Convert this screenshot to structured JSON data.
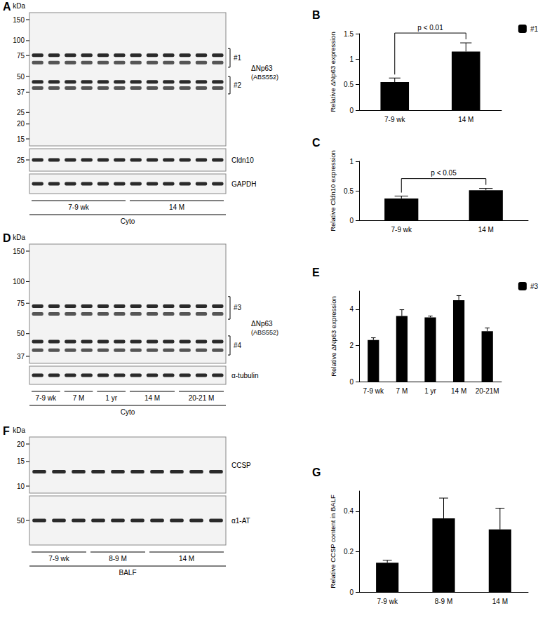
{
  "chart_data": [
    {
      "type": "bar",
      "title": "B",
      "categories": [
        "7-9 wk",
        "14 M"
      ],
      "series": [
        {
          "name": "#1",
          "color": "#000000",
          "values": [
            0.55,
            1.15
          ],
          "errors": [
            0.08,
            0.17
          ]
        }
      ],
      "ylabel": "Relative ΔNp63 expression",
      "ylim": [
        0,
        1.5
      ],
      "yticks": [
        0,
        0.5,
        1,
        1.5
      ],
      "legend": "top-right",
      "grid": false,
      "annotation": "p < 0.01"
    },
    {
      "type": "bar",
      "title": "C",
      "categories": [
        "7-9 wk",
        "14 M"
      ],
      "values": [
        0.37,
        0.51
      ],
      "errors": [
        0.04,
        0.03
      ],
      "color": "#000000",
      "ylabel": "Relative Cldn10 expression",
      "ylim": [
        0,
        1
      ],
      "yticks": [
        0,
        0.5,
        1
      ],
      "grid": false,
      "annotation": "p < 0.05"
    },
    {
      "type": "bar",
      "title": "E",
      "categories": [
        "7-9 wk",
        "7 M",
        "1 yr",
        "14 M",
        "20-21M"
      ],
      "series": [
        {
          "name": "#3",
          "color": "#000000",
          "values": [
            2.3,
            3.62,
            3.55,
            4.5,
            2.78
          ],
          "errors": [
            0.12,
            0.35,
            0.07,
            0.25,
            0.18
          ]
        }
      ],
      "ylabel": "Relative ΔNp63 expression",
      "ylim": [
        0,
        5
      ],
      "yticks": [
        0,
        2,
        4
      ],
      "legend": "top-right",
      "grid": false
    },
    {
      "type": "bar",
      "title": "G",
      "categories": [
        "7-9 wk",
        "8-9 M",
        "14 M"
      ],
      "values": [
        0.145,
        0.365,
        0.31
      ],
      "errors": [
        0.012,
        0.1,
        0.105
      ],
      "color": "#000000",
      "ylabel": "Relative CCSP content in BALF",
      "ylim": [
        0,
        0.5
      ],
      "yticks": [
        0,
        0.2,
        0.4
      ],
      "grid": false
    }
  ],
  "blots": [
    {
      "title": "A",
      "unit": "kDa",
      "strips": [
        {
          "markers": [
            150,
            100,
            75,
            50,
            37,
            25,
            20,
            15
          ],
          "label": "ΔNp63",
          "sublabel": "(ABS552)",
          "brackets": [
            "#1",
            "#2"
          ]
        },
        {
          "markers": [
            25
          ],
          "label": "Cldn10"
        },
        {
          "label": "GAPDH"
        }
      ],
      "groups": [
        {
          "label": "7-9 wk",
          "lanes": 6
        },
        {
          "label": "14 M",
          "lanes": 6
        }
      ],
      "sample": "Cyto"
    },
    {
      "title": "D",
      "unit": "kDa",
      "strips": [
        {
          "markers": [
            150,
            100,
            75,
            50,
            37
          ],
          "label": "ΔNp63",
          "sublabel": "(ABS552)",
          "brackets": [
            "#3",
            "#4"
          ]
        },
        {
          "label": "α-tubulin"
        }
      ],
      "groups": [
        {
          "label": "7-9 wk",
          "lanes": 2
        },
        {
          "label": "7 M",
          "lanes": 2
        },
        {
          "label": "1 yr",
          "lanes": 2
        },
        {
          "label": "14 M",
          "lanes": 3
        },
        {
          "label": "20-21 M",
          "lanes": 3
        }
      ],
      "sample": "Cyto"
    },
    {
      "title": "F",
      "unit": "kDa",
      "strips": [
        {
          "markers": [
            20,
            15,
            10
          ],
          "label": "CCSP"
        },
        {
          "markers": [
            50
          ],
          "label": "α1-AT"
        }
      ],
      "groups": [
        {
          "label": "7-9 wk",
          "lanes": 3
        },
        {
          "label": "8-9 M",
          "lanes": 3
        },
        {
          "label": "14 M",
          "lanes": 4
        }
      ],
      "sample": "BALF"
    }
  ]
}
